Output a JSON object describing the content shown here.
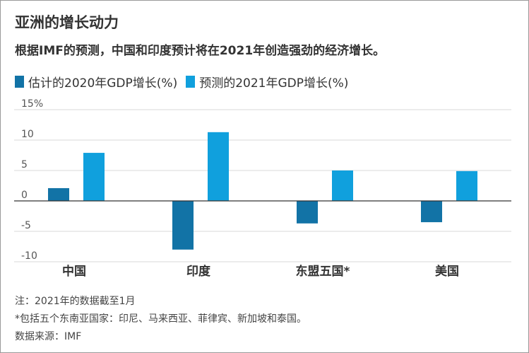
{
  "title": "亚洲的增长动力",
  "subtitle": "根据IMF的预测，中国和印度预计将在2021年创造强劲的经济增长。",
  "colors": {
    "series_2020": "#1273a6",
    "series_2021": "#10a0dd",
    "gridline": "#d9d9d9",
    "zeroline": "#333333"
  },
  "chart_data": {
    "type": "bar",
    "categories": [
      "中国",
      "印度",
      "东盟五国*",
      "美国"
    ],
    "series": [
      {
        "name": "估计的2020年GDP增长(%)",
        "values": [
          2.1,
          -8.0,
          -3.7,
          -3.5
        ]
      },
      {
        "name": "预测的2021年GDP增长(%)",
        "values": [
          7.9,
          11.3,
          5.0,
          4.9
        ]
      }
    ],
    "yticks": [
      15,
      10,
      5,
      0,
      -5,
      -10
    ],
    "ytick_labels": [
      "15%",
      "10",
      "5",
      "0",
      "-5",
      "-10"
    ],
    "ylim": [
      -10,
      15
    ],
    "grid": true,
    "legend": "top-left"
  },
  "notes": [
    "注：2021年的数据截至1月",
    "*包括五个东南亚国家：印尼、马来西亚、菲律宾、新加坡和泰国。",
    "数据来源：IMF"
  ]
}
